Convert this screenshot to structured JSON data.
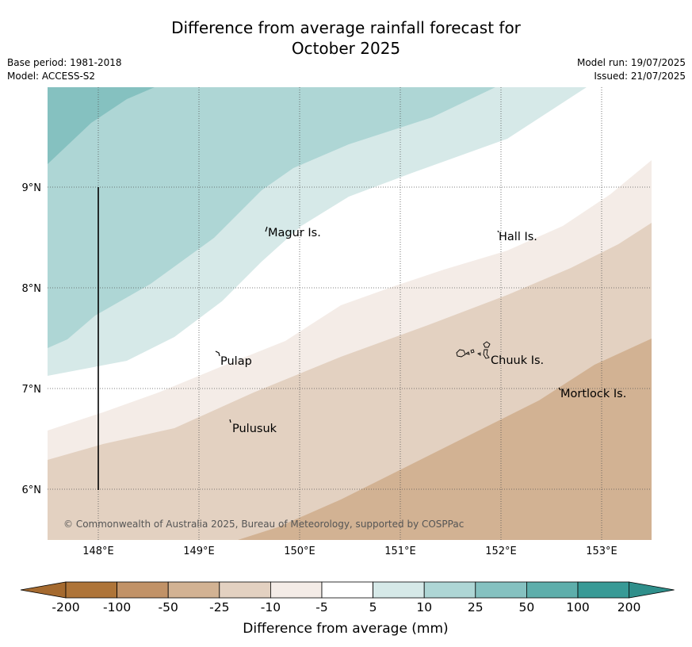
{
  "title_line1": "Difference from average rainfall forecast for",
  "title_line2": "October 2025",
  "meta_left": [
    "Base period: 1981-2018",
    "Model: ACCESS-S2"
  ],
  "meta_right": [
    "Model run: 19/07/2025",
    "Issued: 21/07/2025"
  ],
  "map": {
    "lon_ticks": [
      "148°E",
      "149°E",
      "150°E",
      "151°E",
      "152°E",
      "153°E"
    ],
    "lat_ticks": [
      "9°N",
      "8°N",
      "7°N",
      "6°N"
    ],
    "places": [
      "Magur Is.",
      "Hall Is.",
      "Pulap",
      "Chuuk Is.",
      "Mortlock Is.",
      "Pulusuk"
    ],
    "copyright": "© Commonwealth of Australia 2025, Bureau of Meteorology, supported by COSPPac"
  },
  "colorbar": {
    "labels": [
      "-200",
      "-100",
      "-50",
      "-25",
      "-10",
      "-5",
      "5",
      "10",
      "25",
      "50",
      "100",
      "200"
    ],
    "colors": [
      "#ae7438",
      "#c19267",
      "#d2b293",
      "#e3d1c1",
      "#f4ece7",
      "#ffffff",
      "#d6e9e8",
      "#aed6d5",
      "#85c1c0",
      "#5eaeab",
      "#389a96"
    ],
    "under_color": "#a56a2f",
    "over_color": "#2f8f8b",
    "title": "Difference from average (mm)"
  }
}
